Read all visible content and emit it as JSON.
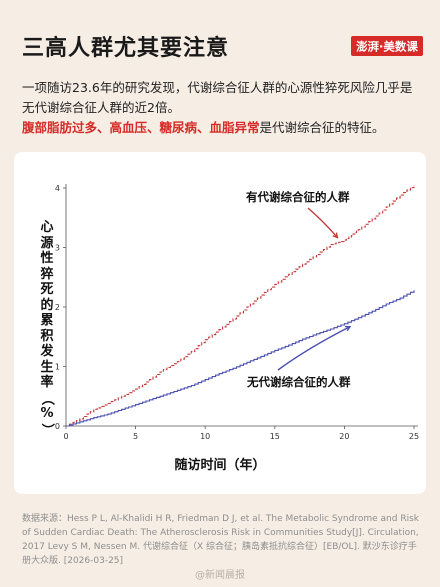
{
  "header": {
    "title": "三高人群尤其要注意",
    "logo_text": "澎湃·美数课"
  },
  "intro": {
    "line1": "一项随访23.6年的研究发现，代谢综合征人群的心源性猝死风险几乎是无代谢综合征人群的近2倍。",
    "highlight": "腹部脂肪过多、高血压、糖尿病、血脂异常",
    "highlight_suffix": "是代谢综合征的特征。"
  },
  "colors": {
    "accent_red": "#d62b27",
    "series_with": "#c63a3a",
    "series_without": "#4a4fb0",
    "background": "#f6ede5",
    "card": "#ffffff"
  },
  "chart_data": {
    "type": "line",
    "title": "",
    "xlabel": "随访时间（年）",
    "ylabel": "心源性猝死的累积发生率（%）",
    "xlim": [
      0,
      25
    ],
    "ylim": [
      0,
      4
    ],
    "xticks": [
      0,
      5,
      10,
      15,
      20,
      25
    ],
    "yticks": [
      0,
      1,
      2,
      3,
      4
    ],
    "grid": false,
    "series": [
      {
        "name": "有代谢综合征的人群",
        "style": "dashed",
        "color": "#c63a3a",
        "x": [
          0,
          1,
          2,
          3,
          4,
          5,
          6,
          7,
          8,
          9,
          10,
          11,
          12,
          13,
          14,
          15,
          16,
          17,
          18,
          19,
          19.8,
          20.5,
          21,
          22,
          23,
          24,
          25
        ],
        "y": [
          0,
          0.12,
          0.28,
          0.38,
          0.5,
          0.62,
          0.78,
          0.95,
          1.08,
          1.25,
          1.45,
          1.62,
          1.8,
          2.0,
          2.2,
          2.38,
          2.55,
          2.72,
          2.88,
          3.05,
          3.1,
          3.2,
          3.3,
          3.48,
          3.68,
          3.88,
          4.05
        ]
      },
      {
        "name": "无代谢综合征的人群",
        "style": "solid",
        "color": "#4a4fb0",
        "x": [
          0,
          1,
          2,
          3,
          4,
          5,
          6,
          7,
          8,
          9,
          10,
          11,
          12,
          13,
          14,
          15,
          16,
          17,
          18,
          19,
          20,
          21,
          22,
          23,
          24,
          25
        ],
        "y": [
          0,
          0.07,
          0.14,
          0.2,
          0.28,
          0.36,
          0.44,
          0.52,
          0.6,
          0.68,
          0.78,
          0.88,
          0.97,
          1.07,
          1.17,
          1.27,
          1.36,
          1.46,
          1.55,
          1.63,
          1.72,
          1.82,
          1.93,
          2.05,
          2.15,
          2.28
        ]
      }
    ]
  },
  "source": {
    "text": "数据来源：Hess P L, Al-Khalidi H R, Friedman D J, et al. The Metabolic Syndrome and Risk of Sudden Cardiac Death: The Atherosclerosis Risk in Communities Study[J]. Circulation, 2017 Levy S M, Nessen M. 代谢综合征（X 综合征；胰岛素抵抗综合征）[EB/OL]. 默沙东诊疗手册大众版. [2026-03-25]"
  },
  "watermark": "@新闻晨报"
}
